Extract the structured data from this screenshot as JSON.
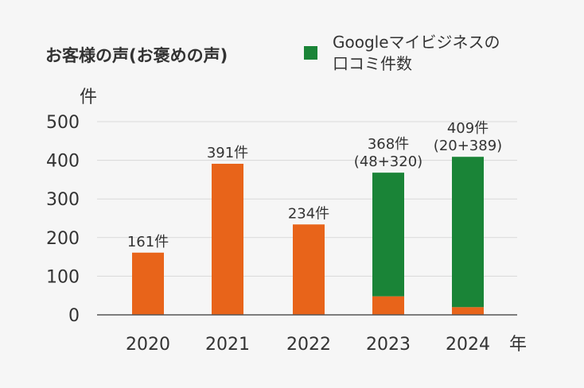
{
  "chart_data": {
    "type": "bar",
    "stacked": true,
    "title": "お客様の声(お褒めの声)",
    "ylabel": "件",
    "xlabel": "年",
    "ylim": [
      0,
      500
    ],
    "yticks": [
      0,
      100,
      200,
      300,
      400,
      500
    ],
    "grid": true,
    "legend_position": "top-right",
    "categories": [
      "2020",
      "2021",
      "2022",
      "2023",
      "2024"
    ],
    "series": [
      {
        "values": [
          161,
          391,
          234,
          48,
          20
        ],
        "color": "#e8641a"
      },
      {
        "name": "Googleマイビジネスの口コミ件数",
        "name_lines": [
          "Googleマイビジネスの",
          "口コミ件数"
        ],
        "values": [
          0,
          0,
          0,
          320,
          389
        ],
        "color": "#1a8437"
      }
    ],
    "data_labels": [
      [
        "161件"
      ],
      [
        "391件"
      ],
      [
        "234件"
      ],
      [
        "368件",
        "(48+320)"
      ],
      [
        "409件",
        "(20+389)"
      ]
    ]
  }
}
